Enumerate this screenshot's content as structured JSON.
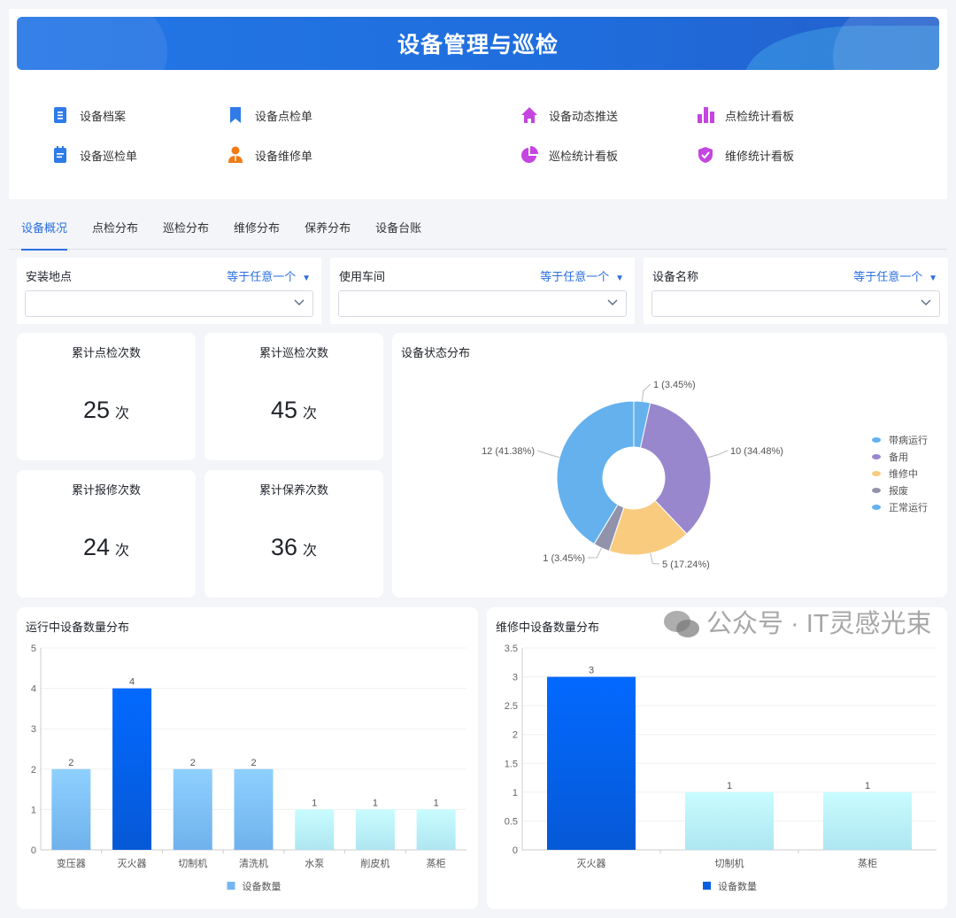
{
  "header": {
    "title": "设备管理与巡检"
  },
  "menu": [
    {
      "label": "设备档案",
      "icon": "document-icon",
      "color": "#2f7be8"
    },
    {
      "label": "设备点检单",
      "icon": "bookmark-icon",
      "color": "#2f7be8"
    },
    {
      "label": "设备动态推送",
      "icon": "home-icon",
      "color": "#c545e0"
    },
    {
      "label": "点检统计看板",
      "icon": "bar-chart-icon",
      "color": "#c545e0"
    },
    {
      "label": "设备巡检单",
      "icon": "clipboard-icon",
      "color": "#2f7be8"
    },
    {
      "label": "设备维修单",
      "icon": "person-icon",
      "color": "#f07b16"
    },
    {
      "label": "巡检统计看板",
      "icon": "pie-chart-icon",
      "color": "#c545e0"
    },
    {
      "label": "维修统计看板",
      "icon": "shield-check-icon",
      "color": "#c545e0"
    }
  ],
  "tabs": [
    {
      "label": "设备概况",
      "active": true
    },
    {
      "label": "点检分布"
    },
    {
      "label": "巡检分布"
    },
    {
      "label": "维修分布"
    },
    {
      "label": "保养分布"
    },
    {
      "label": "设备台账"
    }
  ],
  "filters": [
    {
      "label": "安装地点",
      "operator": "等于任意一个",
      "value": ""
    },
    {
      "label": "使用车间",
      "operator": "等于任意一个",
      "value": ""
    },
    {
      "label": "设备名称",
      "operator": "等于任意一个",
      "value": ""
    }
  ],
  "stats": [
    {
      "title": "累计点检次数",
      "value": "25",
      "unit": "次"
    },
    {
      "title": "累计巡检次数",
      "value": "45",
      "unit": "次"
    },
    {
      "title": "累计报修次数",
      "value": "24",
      "unit": "次"
    },
    {
      "title": "累计保养次数",
      "value": "36",
      "unit": "次"
    }
  ],
  "chart_data": [
    {
      "type": "pie",
      "title": "设备状态分布",
      "donut": true,
      "legend": "right",
      "slices": [
        {
          "name": "带病运行",
          "value": 1,
          "label": "1 (3.45%)",
          "color": "#64b1ee"
        },
        {
          "name": "备用",
          "value": 10,
          "label": "10 (34.48%)",
          "color": "#9987cd"
        },
        {
          "name": "维修中",
          "value": 5,
          "label": "5 (17.24%)",
          "color": "#f8cb7f"
        },
        {
          "name": "报废",
          "value": 1,
          "label": "1 (3.45%)",
          "color": "#9192ab"
        },
        {
          "name": "正常运行",
          "value": 12,
          "label": "12 (41.38%)",
          "color": "#64b1ee"
        }
      ]
    },
    {
      "type": "bar",
      "title": "运行中设备数量分布",
      "categories": [
        "变压器",
        "灭火器",
        "切制机",
        "清洗机",
        "水泵",
        "削皮机",
        "蒸柜"
      ],
      "series": [
        {
          "name": "设备数量",
          "values": [
            2,
            4,
            2,
            2,
            1,
            1,
            1
          ]
        }
      ],
      "ylim": [
        0,
        5
      ],
      "yticks": [
        "0",
        "1",
        "2",
        "3",
        "4",
        "5"
      ],
      "grid": true,
      "legend": "bottom",
      "bar_colors": [
        "light-blue",
        "blue",
        "light-blue",
        "light-blue",
        "cyan",
        "cyan",
        "cyan"
      ],
      "legend_color": "#74b6f2"
    },
    {
      "type": "bar",
      "title": "维修中设备数量分布",
      "categories": [
        "灭火器",
        "切制机",
        "蒸柜"
      ],
      "series": [
        {
          "name": "设备数量",
          "values": [
            3,
            1,
            1
          ]
        }
      ],
      "ylim": [
        0,
        3.5
      ],
      "yticks": [
        "0",
        "0.5",
        "1",
        "1.5",
        "2",
        "2.5",
        "3",
        "3.5"
      ],
      "grid": true,
      "legend": "bottom",
      "bar_colors": [
        "blue",
        "cyan",
        "cyan"
      ],
      "legend_color": "#0a5ee0"
    }
  ],
  "watermark": "公众号 · IT灵感光束"
}
